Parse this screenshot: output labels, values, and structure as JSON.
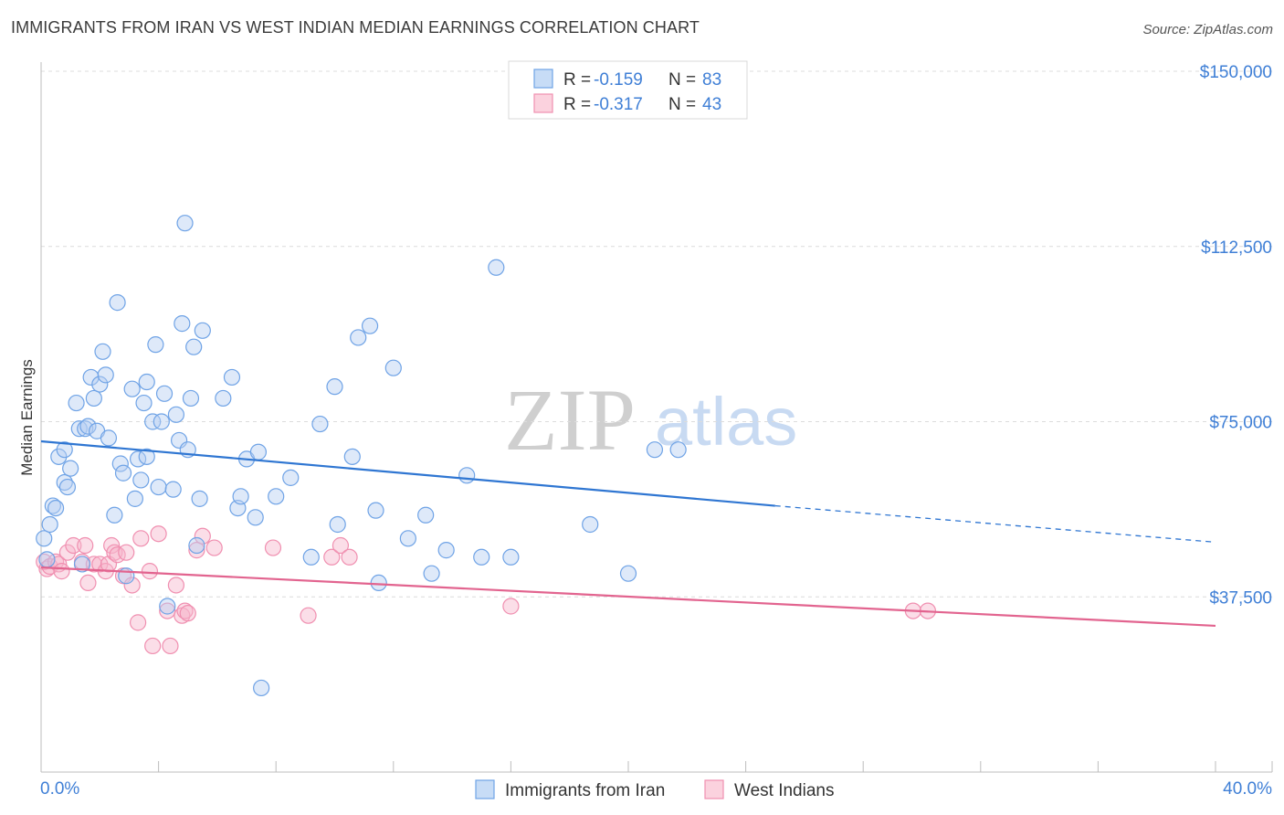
{
  "header": {
    "title": "IMMIGRANTS FROM IRAN VS WEST INDIAN MEDIAN EARNINGS CORRELATION CHART",
    "source": "Source: ZipAtlas.com"
  },
  "watermark": {
    "zip": "ZIP",
    "atlas": "atlas"
  },
  "legend": {
    "rows": [
      {
        "r_label": "R =",
        "r_value": "-0.159",
        "n_label": "N =",
        "n_value": "83"
      },
      {
        "r_label": "R =",
        "r_value": "-0.317",
        "n_label": "N =",
        "n_value": "43"
      }
    ]
  },
  "chart_data": {
    "type": "scatter",
    "title": "IMMIGRANTS FROM IRAN VS WEST INDIAN MEDIAN EARNINGS CORRELATION CHART",
    "xlabel": "",
    "ylabel": "Median Earnings",
    "xlim": [
      0,
      40
    ],
    "ylim": [
      0,
      150000
    ],
    "x_tick_labels": [
      "0.0%",
      "40.0%"
    ],
    "y_ticks": [
      37500,
      75000,
      112500,
      150000
    ],
    "y_tick_labels": [
      "$37,500",
      "$75,000",
      "$112,500",
      "$150,000"
    ],
    "grid": true,
    "legend_position": "top-center",
    "colors": {
      "iran": "#6fa3e6",
      "iran_line": "#2f76d2",
      "west": "#f08fb0",
      "west_line": "#e2648f"
    },
    "series": [
      {
        "name": "Immigrants from Iran",
        "r": -0.159,
        "n": 83,
        "trend": {
          "x0": 0,
          "y0": 70800,
          "x1": 25,
          "y1": 57000,
          "dash_x1": 40,
          "dash_y1": 49200
        },
        "points": [
          [
            0.1,
            50000
          ],
          [
            0.2,
            45500
          ],
          [
            0.3,
            53000
          ],
          [
            0.4,
            57000
          ],
          [
            0.5,
            56500
          ],
          [
            0.6,
            67500
          ],
          [
            0.8,
            62000
          ],
          [
            0.8,
            69000
          ],
          [
            0.9,
            61000
          ],
          [
            1.0,
            65000
          ],
          [
            1.2,
            79000
          ],
          [
            1.3,
            73500
          ],
          [
            1.4,
            44500
          ],
          [
            1.5,
            73500
          ],
          [
            1.6,
            74000
          ],
          [
            1.7,
            84500
          ],
          [
            1.8,
            80000
          ],
          [
            1.9,
            73000
          ],
          [
            2.0,
            83000
          ],
          [
            2.1,
            90000
          ],
          [
            2.2,
            85000
          ],
          [
            2.3,
            71500
          ],
          [
            2.5,
            55000
          ],
          [
            2.6,
            100500
          ],
          [
            2.7,
            66000
          ],
          [
            2.8,
            64000
          ],
          [
            2.9,
            42000
          ],
          [
            3.1,
            82000
          ],
          [
            3.2,
            58500
          ],
          [
            3.3,
            67000
          ],
          [
            3.4,
            62500
          ],
          [
            3.5,
            79000
          ],
          [
            3.6,
            67500
          ],
          [
            3.6,
            83500
          ],
          [
            3.8,
            75000
          ],
          [
            3.9,
            91500
          ],
          [
            4.0,
            61000
          ],
          [
            4.1,
            75000
          ],
          [
            4.2,
            81000
          ],
          [
            4.3,
            35500
          ],
          [
            4.5,
            60500
          ],
          [
            4.6,
            76500
          ],
          [
            4.7,
            71000
          ],
          [
            4.8,
            96000
          ],
          [
            4.9,
            117500
          ],
          [
            5.0,
            69000
          ],
          [
            5.1,
            80000
          ],
          [
            5.2,
            91000
          ],
          [
            5.3,
            48500
          ],
          [
            5.4,
            58500
          ],
          [
            5.5,
            94500
          ],
          [
            6.2,
            80000
          ],
          [
            6.5,
            84500
          ],
          [
            6.7,
            56500
          ],
          [
            6.8,
            59000
          ],
          [
            7.0,
            67000
          ],
          [
            7.3,
            54500
          ],
          [
            7.4,
            68500
          ],
          [
            7.5,
            18000
          ],
          [
            8.0,
            59000
          ],
          [
            8.5,
            63000
          ],
          [
            9.2,
            46000
          ],
          [
            9.5,
            74500
          ],
          [
            10.0,
            82500
          ],
          [
            10.1,
            53000
          ],
          [
            10.6,
            67500
          ],
          [
            10.8,
            93000
          ],
          [
            11.2,
            95500
          ],
          [
            11.4,
            56000
          ],
          [
            11.5,
            40500
          ],
          [
            12.0,
            86500
          ],
          [
            12.5,
            50000
          ],
          [
            13.1,
            55000
          ],
          [
            13.3,
            42500
          ],
          [
            13.8,
            47500
          ],
          [
            14.5,
            63500
          ],
          [
            15.0,
            46000
          ],
          [
            15.5,
            108000
          ],
          [
            16.0,
            46000
          ],
          [
            18.7,
            53000
          ],
          [
            20.0,
            42500
          ],
          [
            20.9,
            69000
          ],
          [
            21.7,
            69000
          ]
        ]
      },
      {
        "name": "West Indians",
        "r": -0.317,
        "n": 43,
        "trend": {
          "x0": 0,
          "y0": 43800,
          "x1": 40,
          "y1": 31300
        },
        "points": [
          [
            0.1,
            45000
          ],
          [
            0.2,
            43500
          ],
          [
            0.3,
            44000
          ],
          [
            0.5,
            45000
          ],
          [
            0.6,
            44500
          ],
          [
            0.7,
            43000
          ],
          [
            0.9,
            47000
          ],
          [
            1.1,
            48500
          ],
          [
            1.4,
            45000
          ],
          [
            1.5,
            48500
          ],
          [
            1.6,
            40500
          ],
          [
            1.8,
            44500
          ],
          [
            2.0,
            44500
          ],
          [
            2.2,
            43000
          ],
          [
            2.3,
            44500
          ],
          [
            2.4,
            48500
          ],
          [
            2.5,
            47000
          ],
          [
            2.6,
            46500
          ],
          [
            2.8,
            42000
          ],
          [
            2.9,
            47000
          ],
          [
            3.1,
            40000
          ],
          [
            3.3,
            32000
          ],
          [
            3.4,
            50000
          ],
          [
            3.7,
            43000
          ],
          [
            3.8,
            27000
          ],
          [
            4.0,
            51000
          ],
          [
            4.3,
            34500
          ],
          [
            4.4,
            27000
          ],
          [
            4.6,
            40000
          ],
          [
            4.8,
            33500
          ],
          [
            4.9,
            34500
          ],
          [
            5.0,
            34000
          ],
          [
            5.3,
            47500
          ],
          [
            5.5,
            50500
          ],
          [
            5.9,
            48000
          ],
          [
            7.9,
            48000
          ],
          [
            9.1,
            33500
          ],
          [
            9.9,
            46000
          ],
          [
            10.2,
            48500
          ],
          [
            10.5,
            46000
          ],
          [
            16.0,
            35500
          ],
          [
            29.7,
            34500
          ],
          [
            30.2,
            34500
          ]
        ]
      }
    ]
  }
}
